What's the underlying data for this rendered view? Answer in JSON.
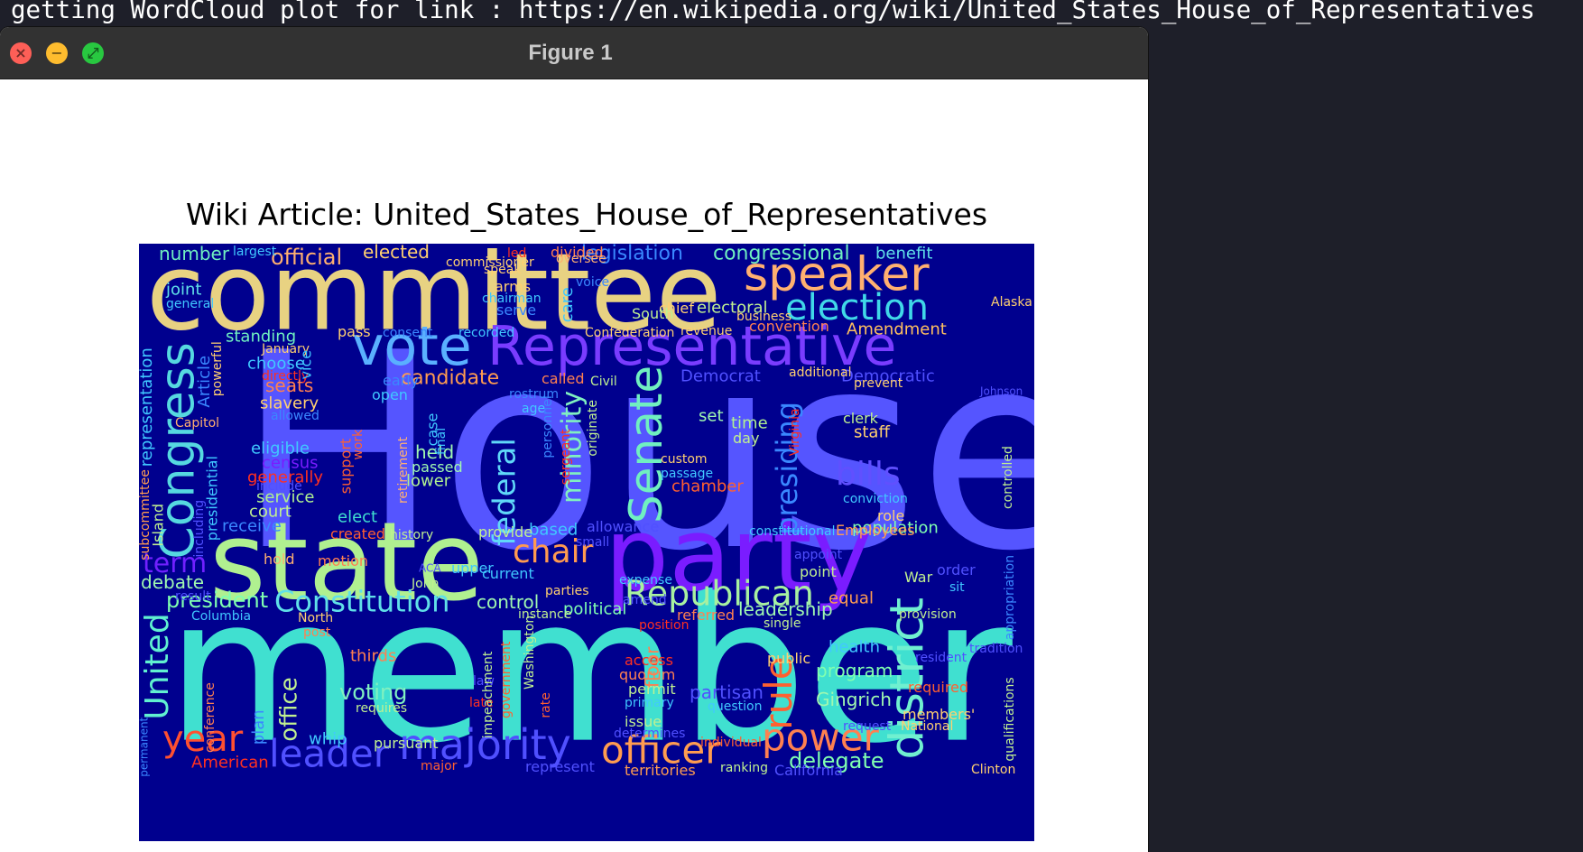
{
  "terminal": {
    "text": "getting WordCloud plot for link : https://en.wikipedia.org/wiki/United_States_House_of_Representatives"
  },
  "window": {
    "title": "Figure 1",
    "close_glyph": "×",
    "minimize_glyph": "−",
    "zoom_glyph": "⤢"
  },
  "plot": {
    "title": "Wiki Article: United_States_House_of_Representatives"
  },
  "colors": {
    "cloud_background": "#00008e"
  },
  "words": [
    {
      "t": "House",
      "c": "#5555ff"
    },
    {
      "t": "member",
      "c": "#40e0d0"
    },
    {
      "t": "committee",
      "c": "#e8d282"
    },
    {
      "t": "state",
      "c": "#b0f090"
    },
    {
      "t": "party",
      "c": "#7a1cff"
    },
    {
      "t": "Representative",
      "c": "#7a3cff"
    },
    {
      "t": "speaker",
      "c": "#ffb070"
    },
    {
      "t": "vote",
      "c": "#5ab0ff"
    },
    {
      "t": "Congress",
      "c": "#56d8e0"
    },
    {
      "t": "Senate",
      "c": "#70f0c0"
    },
    {
      "t": "election",
      "c": "#40d8e8"
    },
    {
      "t": "district",
      "c": "#70f0d0"
    },
    {
      "t": "majority",
      "c": "#5050ff"
    },
    {
      "t": "officer",
      "c": "#ff9c50"
    },
    {
      "t": "power",
      "c": "#ff8050"
    },
    {
      "t": "Republican",
      "c": "#a8f0a0"
    },
    {
      "t": "Constitution",
      "c": "#60e0e8"
    },
    {
      "t": "leader",
      "c": "#5050ff"
    },
    {
      "t": "year",
      "c": "#ff5030"
    },
    {
      "t": "rule",
      "c": "#ff6030"
    },
    {
      "t": "chair",
      "c": "#ff9a50"
    },
    {
      "t": "bills",
      "c": "#6050ff"
    },
    {
      "t": "federal",
      "c": "#60d8f8"
    },
    {
      "t": "minority",
      "c": "#80f0c0"
    },
    {
      "t": "presiding",
      "c": "#3a88ff"
    },
    {
      "t": "United",
      "c": "#60f0d0"
    },
    {
      "t": "term",
      "c": "#7020ff"
    },
    {
      "t": "president",
      "c": "#80ffb0"
    },
    {
      "t": "office",
      "c": "#c0f090"
    },
    {
      "t": "delegate",
      "c": "#80ffb0"
    },
    {
      "t": "voting",
      "c": "#80f0c0"
    },
    {
      "t": "candidate",
      "c": "#ff9c50"
    },
    {
      "t": "legislation",
      "c": "#3a88ff"
    },
    {
      "t": "congressional",
      "c": "#70f0c0"
    },
    {
      "t": "official",
      "c": "#ffb070"
    },
    {
      "t": "elected",
      "c": "#ffd070"
    },
    {
      "t": "number",
      "c": "#70f0c0"
    },
    {
      "t": "benefit",
      "c": "#60e0e8"
    },
    {
      "t": "Amendment",
      "c": "#ffc060"
    },
    {
      "t": "seats",
      "c": "#ff8050"
    },
    {
      "t": "slavery",
      "c": "#ffd070"
    },
    {
      "t": "standing",
      "c": "#70f0c0"
    },
    {
      "t": "choose",
      "c": "#40c8ff"
    },
    {
      "t": "representation",
      "c": "#40c8ff"
    },
    {
      "t": "debate",
      "c": "#a0f8b0"
    },
    {
      "t": "leadership",
      "c": "#a0f8b0"
    },
    {
      "t": "equal",
      "c": "#ff9c50"
    },
    {
      "t": "Gingrich",
      "c": "#a0f8b0"
    },
    {
      "t": "program",
      "c": "#80ffb0"
    },
    {
      "t": "partisan",
      "c": "#5050ff"
    },
    {
      "t": "health",
      "c": "#40c8ff"
    },
    {
      "t": "population",
      "c": "#80ffb0"
    },
    {
      "t": "chamber",
      "c": "#ff6030"
    },
    {
      "t": "held",
      "c": "#a0f8b0"
    },
    {
      "t": "passed",
      "c": "#a0f8b0"
    },
    {
      "t": "lower",
      "c": "#b0f090"
    },
    {
      "t": "elect",
      "c": "#40e0d0"
    },
    {
      "t": "court",
      "c": "#c0f090"
    },
    {
      "t": "service",
      "c": "#b0f090"
    },
    {
      "t": "eligible",
      "c": "#40c8ff"
    },
    {
      "t": "census",
      "c": "#7a1cff"
    },
    {
      "t": "generally",
      "c": "#ff3020"
    },
    {
      "t": "include",
      "c": "#5050ff"
    },
    {
      "t": "receive",
      "c": "#3a88ff"
    },
    {
      "t": "control",
      "c": "#a0f8b0"
    },
    {
      "t": "political",
      "c": "#80ffb0"
    },
    {
      "t": "based",
      "c": "#40c8ff"
    },
    {
      "t": "current",
      "c": "#40c8ff"
    },
    {
      "t": "allowance",
      "c": "#5050ff"
    },
    {
      "t": "set",
      "c": "#a0f8b0"
    },
    {
      "t": "time",
      "c": "#b0f090"
    },
    {
      "t": "day",
      "c": "#c0f090"
    },
    {
      "t": "clerk",
      "c": "#c0f090"
    },
    {
      "t": "staff",
      "c": "#ffd070"
    },
    {
      "t": "Democrat",
      "c": "#5050ff"
    },
    {
      "t": "Democratic",
      "c": "#5050ff"
    },
    {
      "t": "electoral",
      "c": "#c0f090"
    },
    {
      "t": "chief",
      "c": "#ffd070"
    },
    {
      "t": "convention",
      "c": "#ff8050"
    },
    {
      "t": "called",
      "c": "#ff8050"
    },
    {
      "t": "Civil",
      "c": "#c0f090"
    },
    {
      "t": "open",
      "c": "#40c8ff"
    },
    {
      "t": "early",
      "c": "#3a88ff"
    },
    {
      "t": "pass",
      "c": "#ffd070"
    },
    {
      "t": "consent",
      "c": "#3a88ff"
    },
    {
      "t": "recorded",
      "c": "#40c8ff"
    },
    {
      "t": "Confederation",
      "c": "#ffd070"
    },
    {
      "t": "revenue",
      "c": "#ffd070"
    },
    {
      "t": "South",
      "c": "#c0f090"
    },
    {
      "t": "business",
      "c": "#ffd070"
    },
    {
      "t": "Alaska",
      "c": "#ffd070"
    },
    {
      "t": "additional",
      "c": "#ffd070"
    },
    {
      "t": "prevent",
      "c": "#ffd070"
    },
    {
      "t": "Johnson",
      "c": "#5050ff"
    },
    {
      "t": "joint",
      "c": "#60e0e8"
    },
    {
      "t": "general",
      "c": "#40c8ff"
    },
    {
      "t": "largest",
      "c": "#40c8ff"
    },
    {
      "t": "led",
      "c": "#ff3020"
    },
    {
      "t": "divided",
      "c": "#ff8050"
    },
    {
      "t": "commissioner",
      "c": "#ffd070"
    },
    {
      "t": "oversee",
      "c": "#ffb070"
    },
    {
      "t": "speak",
      "c": "#ffd070"
    },
    {
      "t": "voice",
      "c": "#3a88ff"
    },
    {
      "t": "arms",
      "c": "#ffd070"
    },
    {
      "t": "chairman",
      "c": "#40c8ff"
    },
    {
      "t": "serve",
      "c": "#3a88ff"
    },
    {
      "t": "care",
      "c": "#40c8ff"
    },
    {
      "t": "January",
      "c": "#ffd070"
    },
    {
      "t": "directly",
      "c": "#ff3020"
    },
    {
      "t": "allowed",
      "c": "#3a88ff"
    },
    {
      "t": "Capitol",
      "c": "#ffb070"
    },
    {
      "t": "rostrum",
      "c": "#3a88ff"
    },
    {
      "t": "age",
      "c": "#40c8ff"
    },
    {
      "t": "custom",
      "c": "#ffd070"
    },
    {
      "t": "passage",
      "c": "#40c8ff"
    },
    {
      "t": "conviction",
      "c": "#40c8ff"
    },
    {
      "t": "role",
      "c": "#ffd070"
    },
    {
      "t": "Employees",
      "c": "#ff9c50"
    },
    {
      "t": "constitutional",
      "c": "#40c8ff"
    },
    {
      "t": "provide",
      "c": "#c0f090"
    },
    {
      "t": "history",
      "c": "#c0f090"
    },
    {
      "t": "created",
      "c": "#ff6030"
    },
    {
      "t": "small",
      "c": "#5050ff"
    },
    {
      "t": "appoint",
      "c": "#5050ff"
    },
    {
      "t": "point",
      "c": "#c0f090"
    },
    {
      "t": "order",
      "c": "#5050ff"
    },
    {
      "t": "War",
      "c": "#c0f090"
    },
    {
      "t": "sit",
      "c": "#40c8ff"
    },
    {
      "t": "provision",
      "c": "#c0f090"
    },
    {
      "t": "single",
      "c": "#c0f090"
    },
    {
      "t": "referred",
      "c": "#ff8050"
    },
    {
      "t": "position",
      "c": "#ff3020"
    },
    {
      "t": "amend",
      "c": "#5050ff"
    },
    {
      "t": "expense",
      "c": "#40c8ff"
    },
    {
      "t": "parties",
      "c": "#ffd070"
    },
    {
      "t": "instance",
      "c": "#c0f090"
    },
    {
      "t": "upper",
      "c": "#40c8ff"
    },
    {
      "t": "ACA",
      "c": "#5050ff"
    },
    {
      "t": "John",
      "c": "#c0f090"
    },
    {
      "t": "hold",
      "c": "#ffb070"
    },
    {
      "t": "motion",
      "c": "#ff8050"
    },
    {
      "t": "result",
      "c": "#5050ff"
    },
    {
      "t": "Columbia",
      "c": "#40c8ff"
    },
    {
      "t": "North",
      "c": "#ffd070"
    },
    {
      "t": "post",
      "c": "#ff8050"
    },
    {
      "t": "thirds",
      "c": "#ff8050"
    },
    {
      "t": "plan",
      "c": "#3a88ff"
    },
    {
      "t": "conference",
      "c": "#ff8050"
    },
    {
      "t": "requires",
      "c": "#c0f090"
    },
    {
      "t": "late",
      "c": "#ff3020"
    },
    {
      "t": "law",
      "c": "#5050ff"
    },
    {
      "t": "whip",
      "c": "#40c8ff"
    },
    {
      "t": "pursuant",
      "c": "#c0f090"
    },
    {
      "t": "American",
      "c": "#ff3020"
    },
    {
      "t": "major",
      "c": "#ff6030"
    },
    {
      "t": "represent",
      "c": "#5050ff"
    },
    {
      "t": "territories",
      "c": "#ff9c50"
    },
    {
      "t": "ranking",
      "c": "#c0f090"
    },
    {
      "t": "California",
      "c": "#5050ff"
    },
    {
      "t": "Clinton",
      "c": "#ffd070"
    },
    {
      "t": "National",
      "c": "#ffd070"
    },
    {
      "t": "members'",
      "c": "#ffd070"
    },
    {
      "t": "request",
      "c": "#5050ff"
    },
    {
      "t": "required",
      "c": "#ff6030"
    },
    {
      "t": "resident",
      "c": "#5050ff"
    },
    {
      "t": "tradition",
      "c": "#5050ff"
    },
    {
      "t": "question",
      "c": "#40c8ff"
    },
    {
      "t": "issue",
      "c": "#c0f090"
    },
    {
      "t": "determines",
      "c": "#5050ff"
    },
    {
      "t": "individual",
      "c": "#ff6030"
    },
    {
      "t": "public",
      "c": "#ffd070"
    },
    {
      "t": "permit",
      "c": "#c0f090"
    },
    {
      "t": "primary",
      "c": "#40c8ff"
    },
    {
      "t": "access",
      "c": "#ff3020"
    },
    {
      "t": "quorum",
      "c": "#ff8050"
    },
    {
      "t": "vice",
      "c": "#40c8ff"
    },
    {
      "t": "Article",
      "c": "#3a88ff"
    },
    {
      "t": "powerful",
      "c": "#ffd070"
    },
    {
      "t": "support",
      "c": "#ff6030"
    },
    {
      "t": "work",
      "c": "#ff6030"
    },
    {
      "t": "presidential",
      "c": "#40c8ff"
    },
    {
      "t": "Island",
      "c": "#c0f090"
    },
    {
      "t": "including",
      "c": "#5050ff"
    },
    {
      "t": "subcommittee",
      "c": "#ff9c50"
    },
    {
      "t": "permanent",
      "c": "#3a88ff"
    },
    {
      "t": "retirement",
      "c": "#ffb070"
    },
    {
      "t": "case",
      "c": "#40c8ff"
    },
    {
      "t": "final",
      "c": "#40c8ff"
    },
    {
      "t": "personnel",
      "c": "#3a88ff"
    },
    {
      "t": "sergeant",
      "c": "#ff3020"
    },
    {
      "t": "originate",
      "c": "#c0f090"
    },
    {
      "t": "Virginia",
      "c": "#ff3020"
    },
    {
      "t": "controlled",
      "c": "#c0f090"
    },
    {
      "t": "appropriation",
      "c": "#3a88ff"
    },
    {
      "t": "qualifications",
      "c": "#c0f090"
    },
    {
      "t": "floor",
      "c": "#ff8050"
    },
    {
      "t": "Washington",
      "c": "#c0f090"
    },
    {
      "t": "rate",
      "c": "#ff6030"
    },
    {
      "t": "government",
      "c": "#ff6030"
    },
    {
      "t": "impeachment",
      "c": "#c0f090"
    }
  ]
}
